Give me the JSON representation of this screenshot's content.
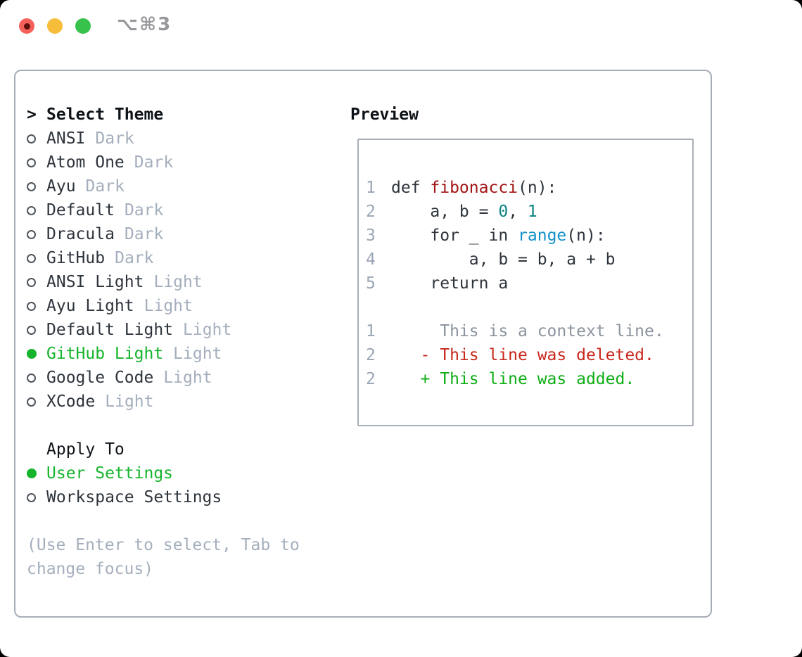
{
  "window": {
    "title": "⌥⌘3",
    "traffic_lights": [
      {
        "name": "close",
        "color": "#f4605a",
        "dot": true,
        "dot_color": "#5c100a"
      },
      {
        "name": "minimize",
        "color": "#f6bd3a",
        "dot": false
      },
      {
        "name": "zoom",
        "color": "#36c24b",
        "dot": false
      }
    ]
  },
  "theme_panel": {
    "header_prefix": ">",
    "header": "Select Theme",
    "themes": [
      {
        "name": "ANSI",
        "tag": "Dark",
        "selected": false
      },
      {
        "name": "Atom One",
        "tag": "Dark",
        "selected": false
      },
      {
        "name": "Ayu",
        "tag": "Dark",
        "selected": false
      },
      {
        "name": "Default",
        "tag": "Dark",
        "selected": false
      },
      {
        "name": "Dracula",
        "tag": "Dark",
        "selected": false
      },
      {
        "name": "GitHub",
        "tag": "Dark",
        "selected": false
      },
      {
        "name": "ANSI Light",
        "tag": "Light",
        "selected": false
      },
      {
        "name": "Ayu Light",
        "tag": "Light",
        "selected": false
      },
      {
        "name": "Default Light",
        "tag": "Light",
        "selected": false
      },
      {
        "name": "GitHub Light",
        "tag": "Light",
        "selected": true
      },
      {
        "name": "Google Code",
        "tag": "Light",
        "selected": false
      },
      {
        "name": "XCode",
        "tag": "Light",
        "selected": false
      }
    ],
    "apply_to": {
      "header": "Apply To",
      "options": [
        {
          "name": "User Settings",
          "selected": true
        },
        {
          "name": "Workspace Settings",
          "selected": false
        }
      ]
    },
    "help_text": "(Use Enter to select, Tab to change focus)"
  },
  "preview": {
    "header": "Preview",
    "lines": [
      {
        "num": "1",
        "tokens": [
          {
            "text": "def ",
            "type": "keyword"
          },
          {
            "text": "fibonacci",
            "type": "function_title"
          },
          {
            "text": "(n):",
            "type": "plain"
          }
        ]
      },
      {
        "num": "2",
        "tokens": [
          {
            "text": "    a, b = ",
            "type": "plain"
          },
          {
            "text": "0",
            "type": "number"
          },
          {
            "text": ", ",
            "type": "plain"
          },
          {
            "text": "1",
            "type": "number"
          }
        ]
      },
      {
        "num": "3",
        "tokens": [
          {
            "text": "    ",
            "type": "plain"
          },
          {
            "text": "for",
            "type": "keyword"
          },
          {
            "text": " _ ",
            "type": "plain"
          },
          {
            "text": "in",
            "type": "keyword"
          },
          {
            "text": " ",
            "type": "plain"
          },
          {
            "text": "range",
            "type": "builtin"
          },
          {
            "text": "(n):",
            "type": "plain"
          }
        ]
      },
      {
        "num": "4",
        "tokens": [
          {
            "text": "        a, b = b, a + b",
            "type": "plain"
          }
        ]
      },
      {
        "num": "5",
        "tokens": [
          {
            "text": "    ",
            "type": "plain"
          },
          {
            "text": "return",
            "type": "keyword"
          },
          {
            "text": " a",
            "type": "plain"
          }
        ]
      },
      {
        "num": "",
        "tokens": []
      },
      {
        "num": "1",
        "tokens": [
          {
            "text": "     This is a context line.",
            "type": "context"
          }
        ]
      },
      {
        "num": "2",
        "tokens": [
          {
            "text": "   - This line was deleted.",
            "type": "deleted"
          }
        ]
      },
      {
        "num": "2",
        "tokens": [
          {
            "text": "   + This line was added.",
            "type": "added"
          }
        ]
      }
    ]
  },
  "colors": {
    "accent_green": "#16b42c",
    "text_primary": "#2e343c",
    "heading": "#0e1318",
    "muted": "#a4aebc",
    "panel_border": "#a8aeb8",
    "radio_ring": "#4d545c",
    "window_title": "#97979c",
    "syntax": {
      "plain": "#2e343c",
      "keyword": "#2e343c",
      "function_title": "#a31515",
      "number": "#0b8383",
      "builtin": "#1291c9",
      "lineno": "#9aa5b5",
      "context": "#8b939e",
      "deleted": "#c8281c",
      "added": "#0fae16"
    }
  }
}
